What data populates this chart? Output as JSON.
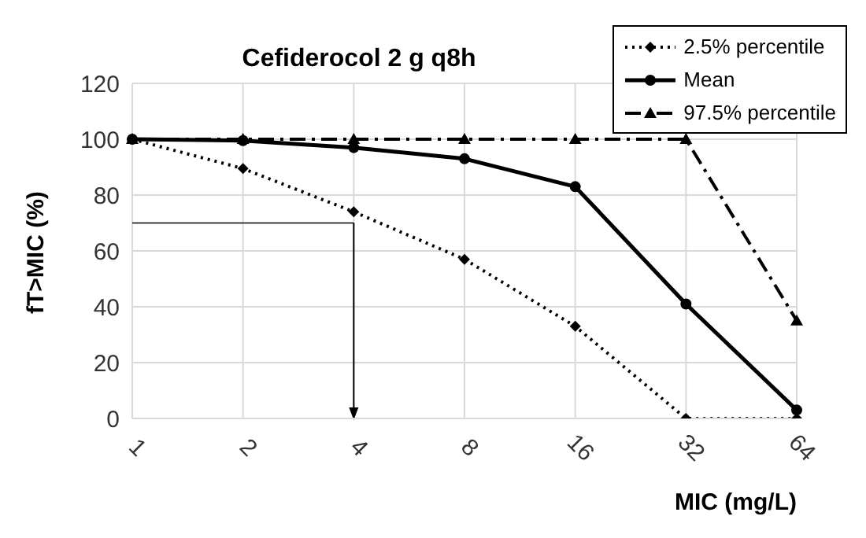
{
  "chart_data": {
    "type": "line",
    "title": "Cefiderocol 2 g q8h",
    "xlabel": "MIC (mg/L)",
    "ylabel": "fT>MIC (%)",
    "categories": [
      "1",
      "2",
      "4",
      "8",
      "16",
      "32",
      "64"
    ],
    "series": [
      {
        "name": "2.5% percentile",
        "color": "#000000",
        "marker": "diamond",
        "line_style": "dotted",
        "values": [
          100,
          89.5,
          74,
          57,
          33,
          0,
          0
        ]
      },
      {
        "name": "Mean",
        "color": "#000000",
        "marker": "circle",
        "line_style": "solid",
        "values": [
          100,
          99.5,
          97,
          93,
          83,
          41,
          3
        ]
      },
      {
        "name": "97.5% percentile",
        "color": "#000000",
        "marker": "triangle",
        "line_style": "dashed",
        "values": [
          100,
          100,
          100,
          100,
          100,
          100,
          35
        ]
      }
    ],
    "ylim": [
      0,
      120
    ],
    "yticks": [
      0,
      20,
      40,
      60,
      80,
      100,
      120
    ],
    "grid": true,
    "legend": "top right",
    "ref_lines": [
      {
        "axis": "y",
        "value": 70,
        "color": "#000000"
      },
      {
        "axis": "x",
        "value": "4",
        "color": "#000000"
      }
    ]
  }
}
